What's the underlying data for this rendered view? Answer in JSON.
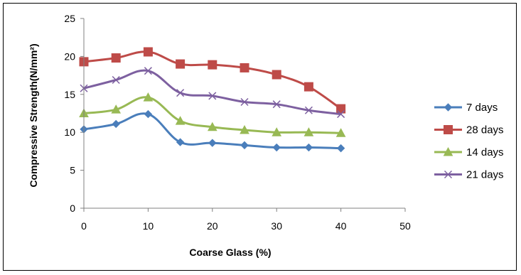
{
  "chart_data": {
    "type": "line",
    "title": "",
    "xlabel": "Coarse Glass (%)",
    "ylabel": "Compressive Strength(N/mm²)",
    "xlim": [
      0,
      50
    ],
    "ylim": [
      0,
      25
    ],
    "x_ticks": [
      0,
      10,
      20,
      30,
      40,
      50
    ],
    "y_ticks": [
      0,
      5,
      10,
      15,
      20,
      25
    ],
    "grid": false,
    "smooth": true,
    "legend_position": "right",
    "x": [
      0,
      5,
      10,
      15,
      20,
      25,
      30,
      35,
      40
    ],
    "series": [
      {
        "name": "7 days",
        "color": "#4a7ebb",
        "marker": "diamond",
        "values": [
          10.4,
          11.1,
          12.4,
          8.7,
          8.6,
          8.3,
          8.0,
          8.0,
          7.9
        ]
      },
      {
        "name": "28 days",
        "color": "#be4b48",
        "marker": "square",
        "values": [
          19.3,
          19.8,
          20.6,
          19.0,
          18.9,
          18.5,
          17.6,
          16.0,
          13.1
        ]
      },
      {
        "name": "14 days",
        "color": "#98b954",
        "marker": "triangle",
        "values": [
          12.5,
          13.0,
          14.6,
          11.5,
          10.7,
          10.3,
          10.0,
          10.0,
          9.9
        ]
      },
      {
        "name": "21 days",
        "color": "#7d60a0",
        "marker": "x",
        "values": [
          15.8,
          16.9,
          18.1,
          15.2,
          14.8,
          14.0,
          13.7,
          12.9,
          12.4
        ]
      }
    ]
  }
}
